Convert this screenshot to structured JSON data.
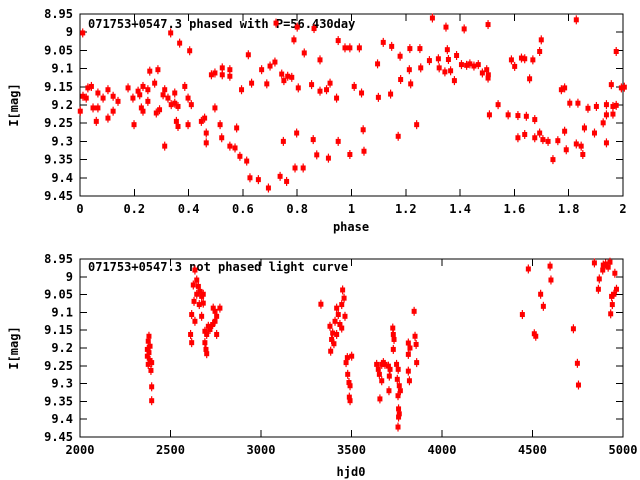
{
  "figure": {
    "background": "#ffffff",
    "text_color": "#000000",
    "marker_color": "#ff0000",
    "marker_shape": "filled-square-with-error-bar"
  },
  "chart_data": [
    {
      "type": "scatter",
      "name": "phased-light-curve",
      "title": "071753+0547.3 phased with P=56.430day",
      "xlabel": "phase",
      "ylabel": "I[mag]",
      "xlim": [
        0,
        2
      ],
      "ylim": [
        8.95,
        9.45
      ],
      "y_axis_inverted_magnitudes": true,
      "grid": false,
      "legend": "none",
      "xticks": {
        "values": [
          0,
          0.2,
          0.4,
          0.6,
          0.8,
          1,
          1.2,
          1.4,
          1.6,
          1.8,
          2
        ],
        "labels": [
          "0",
          "0.2",
          "0.4",
          "0.6",
          "0.8",
          "1",
          "1.2",
          "1.4",
          "1.6",
          "1.8",
          "2"
        ]
      },
      "yticks": {
        "values": [
          8.95,
          9,
          9.05,
          9.1,
          9.15,
          9.2,
          9.25,
          9.3,
          9.35,
          9.4,
          9.45
        ],
        "labels": [
          "8.95",
          "9",
          "9.05",
          "9.1",
          "9.15",
          "9.2",
          "9.25",
          "9.3",
          "9.35",
          "9.4",
          "9.45"
        ]
      },
      "points": [
        [
          0.001,
          9.217
        ],
        [
          0.01,
          9.002
        ],
        [
          0.011,
          9.176
        ],
        [
          0.023,
          9.181
        ],
        [
          0.029,
          9.153
        ],
        [
          0.042,
          9.149
        ],
        [
          0.048,
          9.208
        ],
        [
          0.06,
          9.245
        ],
        [
          0.066,
          9.167
        ],
        [
          0.066,
          9.208
        ],
        [
          0.085,
          9.181
        ],
        [
          0.103,
          9.158
        ],
        [
          0.103,
          9.236
        ],
        [
          0.122,
          9.176
        ],
        [
          0.122,
          9.217
        ],
        [
          0.14,
          9.19
        ],
        [
          0.177,
          9.153
        ],
        [
          0.195,
          9.181
        ],
        [
          0.199,
          9.254
        ],
        [
          0.214,
          9.162
        ],
        [
          0.22,
          9.172
        ],
        [
          0.226,
          9.208
        ],
        [
          0.232,
          9.149
        ],
        [
          0.232,
          9.217
        ],
        [
          0.25,
          9.158
        ],
        [
          0.25,
          9.19
        ],
        [
          0.257,
          9.107
        ],
        [
          0.275,
          9.14
        ],
        [
          0.281,
          9.222
        ],
        [
          0.287,
          9.103
        ],
        [
          0.293,
          9.213
        ],
        [
          0.306,
          9.172
        ],
        [
          0.312,
          9.158
        ],
        [
          0.312,
          9.313
        ],
        [
          0.324,
          9.181
        ],
        [
          0.334,
          9.002
        ],
        [
          0.336,
          9.199
        ],
        [
          0.349,
          9.167
        ],
        [
          0.349,
          9.195
        ],
        [
          0.355,
          9.245
        ],
        [
          0.361,
          9.204
        ],
        [
          0.361,
          9.259
        ],
        [
          0.367,
          9.03
        ],
        [
          0.386,
          9.149
        ],
        [
          0.398,
          9.181
        ],
        [
          0.398,
          9.254
        ],
        [
          0.404,
          9.051
        ],
        [
          0.41,
          9.199
        ],
        [
          0.447,
          9.245
        ],
        [
          0.459,
          9.236
        ],
        [
          0.465,
          9.277
        ],
        [
          0.465,
          9.304
        ],
        [
          0.484,
          9.117
        ],
        [
          0.497,
          9.112
        ],
        [
          0.497,
          9.208
        ],
        [
          0.516,
          9.254
        ],
        [
          0.522,
          9.29
        ],
        [
          0.524,
          9.098
        ],
        [
          0.524,
          9.117
        ],
        [
          0.552,
          9.103
        ],
        [
          0.552,
          9.121
        ],
        [
          0.552,
          9.313
        ],
        [
          0.571,
          9.318
        ],
        [
          0.577,
          9.263
        ],
        [
          0.589,
          9.341
        ],
        [
          0.595,
          9.158
        ],
        [
          0.614,
          9.354
        ],
        [
          0.62,
          9.062
        ],
        [
          0.626,
          9.4
        ],
        [
          0.632,
          9.14
        ],
        [
          0.657,
          9.405
        ],
        [
          0.669,
          9.103
        ],
        [
          0.688,
          9.142
        ],
        [
          0.694,
          9.428
        ],
        [
          0.7,
          9.093
        ],
        [
          0.718,
          9.082
        ],
        [
          0.722,
          8.975
        ],
        [
          0.737,
          9.396
        ],
        [
          0.743,
          9.115
        ],
        [
          0.749,
          9.3
        ],
        [
          0.751,
          9.133
        ],
        [
          0.761,
          9.41
        ],
        [
          0.765,
          9.121
        ],
        [
          0.78,
          9.124
        ],
        [
          0.788,
          9.021
        ],
        [
          0.792,
          9.373
        ],
        [
          0.798,
          9.277
        ],
        [
          0.8,
          8.986
        ],
        [
          0.804,
          9.153
        ],
        [
          0.822,
          9.373
        ],
        [
          0.826,
          9.057
        ],
        [
          0.853,
          9.144
        ],
        [
          0.859,
          9.295
        ],
        [
          0.862,
          8.99
        ],
        [
          0.872,
          9.337
        ],
        [
          0.884,
          9.076
        ],
        [
          0.884,
          9.162
        ],
        [
          0.908,
          9.158
        ],
        [
          0.915,
          9.346
        ],
        [
          0.921,
          9.14
        ],
        [
          0.945,
          9.181
        ],
        [
          0.951,
          9.023
        ],
        [
          0.951,
          9.3
        ],
        [
          0.976,
          9.043
        ],
        [
          0.994,
          9.043
        ],
        [
          0.994,
          9.336
        ],
        [
          1.01,
          9.149
        ],
        [
          1.029,
          9.043
        ],
        [
          1.037,
          9.167
        ],
        [
          1.043,
          9.268
        ],
        [
          1.046,
          9.327
        ],
        [
          1.096,
          9.087
        ],
        [
          1.099,
          9.179
        ],
        [
          1.117,
          9.028
        ],
        [
          1.144,
          9.17
        ],
        [
          1.148,
          9.039
        ],
        [
          1.172,
          9.286
        ],
        [
          1.179,
          9.066
        ],
        [
          1.181,
          9.13
        ],
        [
          1.213,
          9.103
        ],
        [
          1.215,
          9.045
        ],
        [
          1.218,
          9.142
        ],
        [
          1.24,
          9.254
        ],
        [
          1.252,
          9.045
        ],
        [
          1.255,
          9.098
        ],
        [
          1.287,
          9.078
        ],
        [
          1.298,
          8.961
        ],
        [
          1.32,
          9.073
        ],
        [
          1.323,
          9.098
        ],
        [
          1.344,
          9.109
        ],
        [
          1.348,
          8.986
        ],
        [
          1.353,
          9.048
        ],
        [
          1.357,
          9.075
        ],
        [
          1.365,
          9.106
        ],
        [
          1.379,
          9.133
        ],
        [
          1.387,
          9.064
        ],
        [
          1.405,
          9.089
        ],
        [
          1.415,
          8.991
        ],
        [
          1.424,
          9.091
        ],
        [
          1.436,
          9.087
        ],
        [
          1.451,
          9.093
        ],
        [
          1.467,
          9.089
        ],
        [
          1.482,
          9.112
        ],
        [
          1.498,
          9.103
        ],
        [
          1.503,
          8.979
        ],
        [
          1.503,
          9.126
        ],
        [
          1.504,
          9.117
        ],
        [
          1.508,
          9.227
        ],
        [
          1.54,
          9.199
        ],
        [
          1.577,
          9.227
        ],
        [
          1.589,
          9.076
        ],
        [
          1.601,
          9.094
        ],
        [
          1.613,
          9.229
        ],
        [
          1.613,
          9.29
        ],
        [
          1.626,
          9.071
        ],
        [
          1.638,
          9.073
        ],
        [
          1.638,
          9.281
        ],
        [
          1.644,
          9.231
        ],
        [
          1.656,
          9.128
        ],
        [
          1.668,
          9.076
        ],
        [
          1.675,
          9.24
        ],
        [
          1.675,
          9.29
        ],
        [
          1.693,
          9.053
        ],
        [
          1.693,
          9.277
        ],
        [
          1.699,
          9.021
        ],
        [
          1.705,
          9.295
        ],
        [
          1.724,
          9.3
        ],
        [
          1.742,
          9.35
        ],
        [
          1.76,
          9.298
        ],
        [
          1.773,
          9.158
        ],
        [
          1.785,
          9.153
        ],
        [
          1.785,
          9.272
        ],
        [
          1.791,
          9.323
        ],
        [
          1.804,
          9.195
        ],
        [
          1.828,
          8.966
        ],
        [
          1.828,
          9.307
        ],
        [
          1.834,
          9.195
        ],
        [
          1.846,
          9.313
        ],
        [
          1.852,
          9.336
        ],
        [
          1.858,
          9.263
        ],
        [
          1.871,
          9.209
        ],
        [
          1.895,
          9.277
        ],
        [
          1.902,
          9.204
        ],
        [
          1.927,
          9.249
        ],
        [
          1.939,
          9.199
        ],
        [
          1.939,
          9.227
        ],
        [
          1.939,
          9.304
        ],
        [
          1.957,
          9.144
        ],
        [
          1.963,
          9.204
        ],
        [
          1.963,
          9.225
        ],
        [
          1.975,
          9.053
        ],
        [
          1.975,
          9.201
        ],
        [
          1.994,
          9.153
        ],
        [
          2.005,
          9.151
        ]
      ]
    },
    {
      "type": "scatter",
      "name": "unphased-light-curve",
      "title": "071753+0547.3 not phased light curve",
      "xlabel": "hjd0",
      "ylabel": "I[mag]",
      "xlim": [
        2000,
        5000
      ],
      "ylim": [
        8.95,
        9.45
      ],
      "y_axis_inverted_magnitudes": true,
      "grid": false,
      "legend": "none",
      "xticks": {
        "values": [
          2000,
          2500,
          3000,
          3500,
          4000,
          4500,
          5000
        ],
        "labels": [
          "2000",
          "2500",
          "3000",
          "3500",
          "4000",
          "4500",
          "5000"
        ]
      },
      "yticks": {
        "values": [
          8.95,
          9,
          9.05,
          9.1,
          9.15,
          9.2,
          9.25,
          9.3,
          9.35,
          9.4,
          9.45
        ],
        "labels": [
          "8.95",
          "9",
          "9.05",
          "9.1",
          "9.15",
          "9.2",
          "9.25",
          "9.3",
          "9.35",
          "9.4",
          "9.45"
        ]
      },
      "points": [
        [
          2372,
          9.204
        ],
        [
          2372,
          9.223
        ],
        [
          2377,
          9.181
        ],
        [
          2377,
          9.246
        ],
        [
          2381,
          9.167
        ],
        [
          2381,
          9.213
        ],
        [
          2387,
          9.195
        ],
        [
          2387,
          9.235
        ],
        [
          2392,
          9.263
        ],
        [
          2396,
          9.241
        ],
        [
          2396,
          9.309
        ],
        [
          2396,
          9.348
        ],
        [
          2611,
          9.162
        ],
        [
          2617,
          9.106
        ],
        [
          2617,
          9.185
        ],
        [
          2626,
          9.023
        ],
        [
          2630,
          9.069
        ],
        [
          2635,
          8.981
        ],
        [
          2635,
          9.125
        ],
        [
          2645,
          9.009
        ],
        [
          2645,
          9.049
        ],
        [
          2654,
          9.027
        ],
        [
          2659,
          9.078
        ],
        [
          2663,
          9.041
        ],
        [
          2672,
          9.055
        ],
        [
          2672,
          9.111
        ],
        [
          2681,
          9.049
        ],
        [
          2681,
          9.074
        ],
        [
          2690,
          9.153
        ],
        [
          2690,
          9.185
        ],
        [
          2696,
          9.204
        ],
        [
          2700,
          9.162
        ],
        [
          2700,
          9.216
        ],
        [
          2709,
          9.139
        ],
        [
          2718,
          9.148
        ],
        [
          2733,
          9.134
        ],
        [
          2736,
          9.088
        ],
        [
          2746,
          9.097
        ],
        [
          2746,
          9.125
        ],
        [
          2755,
          9.111
        ],
        [
          2755,
          9.162
        ],
        [
          2773,
          9.088
        ],
        [
          3331,
          9.077
        ],
        [
          3381,
          9.139
        ],
        [
          3385,
          9.209
        ],
        [
          3390,
          9.176
        ],
        [
          3396,
          9.158
        ],
        [
          3403,
          9.188
        ],
        [
          3409,
          9.125
        ],
        [
          3418,
          9.088
        ],
        [
          3418,
          9.162
        ],
        [
          3427,
          9.106
        ],
        [
          3436,
          9.134
        ],
        [
          3446,
          9.078
        ],
        [
          3446,
          9.144
        ],
        [
          3451,
          9.037
        ],
        [
          3459,
          9.06
        ],
        [
          3464,
          9.111
        ],
        [
          3470,
          9.241
        ],
        [
          3477,
          9.227
        ],
        [
          3479,
          9.274
        ],
        [
          3486,
          9.297
        ],
        [
          3488,
          9.338
        ],
        [
          3492,
          9.306
        ],
        [
          3492,
          9.348
        ],
        [
          3501,
          9.223
        ],
        [
          3639,
          9.246
        ],
        [
          3648,
          9.26
        ],
        [
          3654,
          9.274
        ],
        [
          3657,
          9.343
        ],
        [
          3667,
          9.246
        ],
        [
          3667,
          9.292
        ],
        [
          3676,
          9.241
        ],
        [
          3685,
          9.246
        ],
        [
          3704,
          9.251
        ],
        [
          3707,
          9.32
        ],
        [
          3709,
          9.279
        ],
        [
          3713,
          9.26
        ],
        [
          3728,
          9.144
        ],
        [
          3731,
          9.162
        ],
        [
          3731,
          9.204
        ],
        [
          3735,
          9.176
        ],
        [
          3749,
          9.246
        ],
        [
          3753,
          9.288
        ],
        [
          3757,
          9.334
        ],
        [
          3757,
          9.422
        ],
        [
          3758,
          9.26
        ],
        [
          3760,
          9.371
        ],
        [
          3760,
          9.394
        ],
        [
          3764,
          9.306
        ],
        [
          3764,
          9.385
        ],
        [
          3770,
          9.32
        ],
        [
          3814,
          9.186
        ],
        [
          3814,
          9.218
        ],
        [
          3814,
          9.265
        ],
        [
          3820,
          9.292
        ],
        [
          3823,
          9.2
        ],
        [
          3846,
          9.097
        ],
        [
          3851,
          9.167
        ],
        [
          3857,
          9.19
        ],
        [
          3860,
          9.241
        ],
        [
          4444,
          9.106
        ],
        [
          4477,
          8.978
        ],
        [
          4510,
          9.16
        ],
        [
          4518,
          9.167
        ],
        [
          4545,
          9.049
        ],
        [
          4560,
          9.083
        ],
        [
          4597,
          8.97
        ],
        [
          4602,
          9.009
        ],
        [
          4726,
          9.146
        ],
        [
          4748,
          9.243
        ],
        [
          4754,
          9.304
        ],
        [
          4842,
          8.961
        ],
        [
          4864,
          9.035
        ],
        [
          4869,
          9.006
        ],
        [
          4888,
          8.981
        ],
        [
          4891,
          8.967
        ],
        [
          4904,
          8.964
        ],
        [
          4918,
          8.973
        ],
        [
          4928,
          8.959
        ],
        [
          4932,
          9.104
        ],
        [
          4937,
          9.055
        ],
        [
          4941,
          9.078
        ],
        [
          4950,
          9.049
        ],
        [
          4955,
          8.99
        ],
        [
          4964,
          9.035
        ]
      ]
    }
  ]
}
